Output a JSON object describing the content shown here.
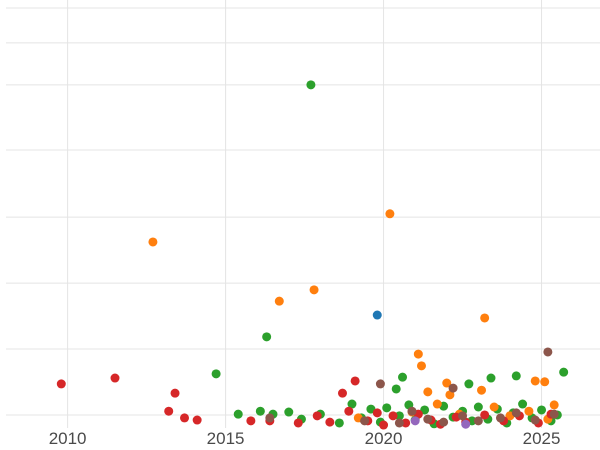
{
  "styles": {
    "background": "#ffffff",
    "grid_color": "#e4e4e4",
    "tick_label_color": "#4a4a4a",
    "marker_radius": 4.5
  },
  "chart_data": {
    "type": "scatter",
    "title": "",
    "subtitle": "",
    "xlabel": "",
    "ylabel": "",
    "legend": "none",
    "grid": true,
    "xlim": [
      2008.05,
      2026.85
    ],
    "ylim": [
      0,
      100
    ],
    "x_ticks": [
      2010,
      2015,
      2020,
      2025
    ],
    "x_tick_labels": [
      "2010",
      "2015",
      "2020",
      "2025"
    ],
    "y_tick_labels": [],
    "y_gridlines": [
      3.1,
      18.8,
      34.5,
      50.2,
      66.2,
      81.7,
      91.7,
      100
    ],
    "series": [
      {
        "name": "green",
        "color": "#2ca02c",
        "points": [
          [
            2017.7,
            81.7
          ],
          [
            2016.3,
            21.7
          ],
          [
            2014.7,
            12.9
          ],
          [
            2020.6,
            12.1
          ],
          [
            2023.4,
            11.9
          ],
          [
            2024.2,
            12.4
          ],
          [
            2025.7,
            13.3
          ],
          [
            2022.7,
            10.5
          ],
          [
            2020.4,
            9.3
          ],
          [
            2015.4,
            3.3
          ],
          [
            2016.1,
            4.0
          ],
          [
            2016.5,
            3.3
          ],
          [
            2017.0,
            3.8
          ],
          [
            2017.4,
            2.1
          ],
          [
            2018.0,
            3.3
          ],
          [
            2018.6,
            1.2
          ],
          [
            2019.0,
            5.7
          ],
          [
            2019.3,
            2.4
          ],
          [
            2019.6,
            4.5
          ],
          [
            2019.9,
            1.4
          ],
          [
            2020.1,
            4.8
          ],
          [
            2020.5,
            2.9
          ],
          [
            2020.8,
            5.5
          ],
          [
            2021.0,
            1.9
          ],
          [
            2021.3,
            4.3
          ],
          [
            2021.6,
            1.0
          ],
          [
            2021.9,
            5.2
          ],
          [
            2022.2,
            2.6
          ],
          [
            2022.5,
            4.0
          ],
          [
            2022.8,
            1.7
          ],
          [
            2023.0,
            5.0
          ],
          [
            2023.3,
            2.1
          ],
          [
            2023.6,
            4.5
          ],
          [
            2023.9,
            1.2
          ],
          [
            2024.1,
            3.6
          ],
          [
            2024.4,
            5.7
          ],
          [
            2024.7,
            2.4
          ],
          [
            2025.0,
            4.3
          ],
          [
            2025.3,
            1.7
          ],
          [
            2025.5,
            3.1
          ]
        ]
      },
      {
        "name": "orange",
        "color": "#ff7f0e",
        "points": [
          [
            2012.7,
            44.3
          ],
          [
            2016.7,
            30.2
          ],
          [
            2017.8,
            32.9
          ],
          [
            2020.2,
            51.0
          ],
          [
            2021.1,
            17.6
          ],
          [
            2021.2,
            14.8
          ],
          [
            2023.2,
            26.2
          ],
          [
            2022.0,
            10.7
          ],
          [
            2024.8,
            11.2
          ],
          [
            2025.1,
            11.0
          ],
          [
            2021.4,
            8.6
          ],
          [
            2022.1,
            7.9
          ],
          [
            2023.1,
            9.0
          ],
          [
            2019.2,
            2.4
          ],
          [
            2020.9,
            3.8
          ],
          [
            2021.7,
            5.7
          ],
          [
            2022.4,
            3.3
          ],
          [
            2023.5,
            5.0
          ],
          [
            2024.0,
            2.9
          ],
          [
            2024.6,
            4.0
          ],
          [
            2025.2,
            2.1
          ],
          [
            2025.4,
            5.5
          ]
        ]
      },
      {
        "name": "red",
        "color": "#d62728",
        "points": [
          [
            2009.8,
            10.5
          ],
          [
            2011.5,
            11.9
          ],
          [
            2013.2,
            4.0
          ],
          [
            2013.4,
            8.3
          ],
          [
            2013.7,
            2.4
          ],
          [
            2014.1,
            1.9
          ],
          [
            2015.8,
            1.7
          ],
          [
            2018.7,
            8.3
          ],
          [
            2019.1,
            11.2
          ],
          [
            2016.4,
            1.7
          ],
          [
            2017.3,
            1.2
          ],
          [
            2017.9,
            2.9
          ],
          [
            2018.3,
            1.4
          ],
          [
            2018.9,
            4.0
          ],
          [
            2019.5,
            1.7
          ],
          [
            2019.8,
            3.6
          ],
          [
            2020.0,
            0.7
          ],
          [
            2020.3,
            2.9
          ],
          [
            2020.7,
            1.2
          ],
          [
            2021.1,
            3.3
          ],
          [
            2021.5,
            1.9
          ],
          [
            2021.8,
            0.9
          ],
          [
            2022.3,
            2.6
          ],
          [
            2022.6,
            1.4
          ],
          [
            2023.2,
            3.1
          ],
          [
            2023.8,
            1.7
          ],
          [
            2024.3,
            2.9
          ],
          [
            2024.9,
            1.2
          ],
          [
            2025.3,
            3.3
          ]
        ]
      },
      {
        "name": "brown",
        "color": "#8c564b",
        "points": [
          [
            2025.2,
            18.1
          ],
          [
            2019.9,
            10.5
          ],
          [
            2022.2,
            9.5
          ],
          [
            2016.4,
            2.4
          ],
          [
            2019.4,
            1.7
          ],
          [
            2020.5,
            1.2
          ],
          [
            2020.9,
            4.0
          ],
          [
            2021.4,
            2.1
          ],
          [
            2021.9,
            1.4
          ],
          [
            2022.5,
            2.9
          ],
          [
            2023.0,
            1.7
          ],
          [
            2023.7,
            2.4
          ],
          [
            2024.2,
            3.6
          ],
          [
            2024.8,
            1.9
          ],
          [
            2025.4,
            3.3
          ]
        ]
      },
      {
        "name": "blue",
        "color": "#1f77b4",
        "points": [
          [
            2019.8,
            26.9
          ]
        ]
      },
      {
        "name": "purple",
        "color": "#9467bd",
        "points": [
          [
            2021.0,
            1.7
          ],
          [
            2022.6,
            0.9
          ]
        ]
      }
    ]
  }
}
